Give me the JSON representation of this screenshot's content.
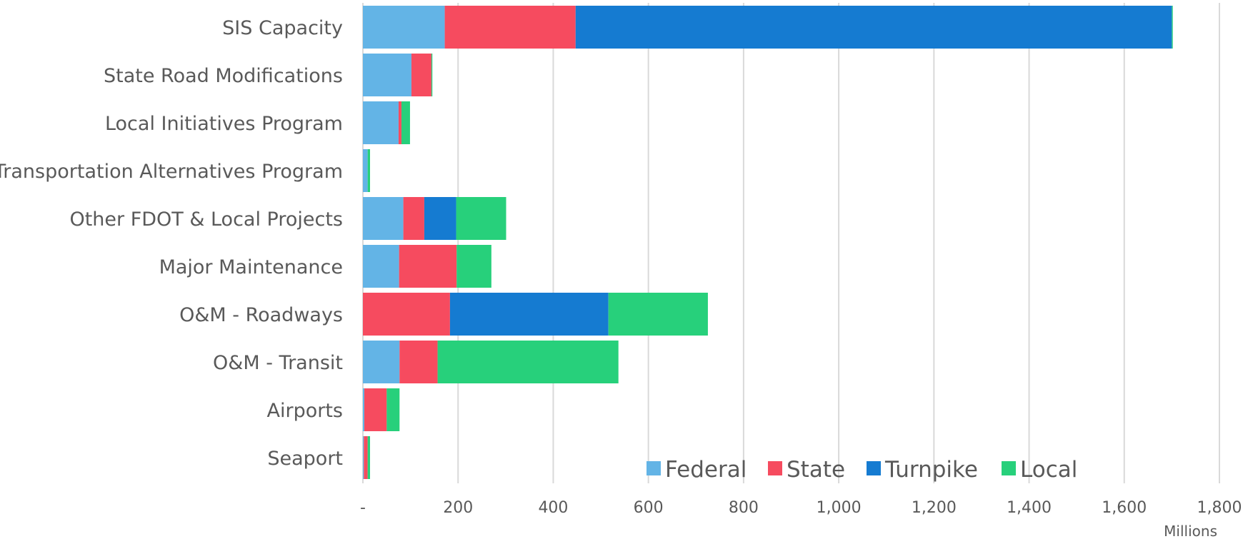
{
  "chart_data": {
    "type": "bar",
    "orientation": "horizontal",
    "stacked": true,
    "categories": [
      "SIS Capacity",
      "State Road Modifications",
      "Local Initiatives Program",
      "Transportation Alternatives Program",
      "Other FDOT & Local Projects",
      "Major Maintenance",
      "O&M - Roadways",
      "O&M - Transit",
      "Airports",
      "Seaport"
    ],
    "series": [
      {
        "name": "Federal",
        "color": "#63B4E6",
        "values": [
          172,
          102,
          75,
          10,
          85,
          76,
          0,
          77,
          3,
          2
        ]
      },
      {
        "name": "State",
        "color": "#F64B5F",
        "values": [
          275,
          42,
          6,
          0,
          44,
          121,
          183,
          80,
          47,
          8
        ]
      },
      {
        "name": "Turnpike",
        "color": "#157BD1",
        "values": [
          1253,
          0,
          0,
          0,
          67,
          0,
          333,
          0,
          0,
          0
        ]
      },
      {
        "name": "Local",
        "color": "#27D07B",
        "values": [
          2,
          2,
          18,
          5,
          105,
          73,
          209,
          380,
          27,
          5
        ]
      }
    ],
    "x_axis": {
      "ticks": [
        0,
        200,
        400,
        600,
        800,
        1000,
        1200,
        1400,
        1600,
        1800
      ],
      "tick_labels": [
        "-",
        "200",
        "400",
        "600",
        "800",
        "1,000",
        "1,200",
        "1,400",
        "1,600",
        "1,800"
      ],
      "range": [
        0,
        1800
      ],
      "unit_label": "Millions"
    },
    "grid": "vertical",
    "legend_position": "bottom-right"
  }
}
